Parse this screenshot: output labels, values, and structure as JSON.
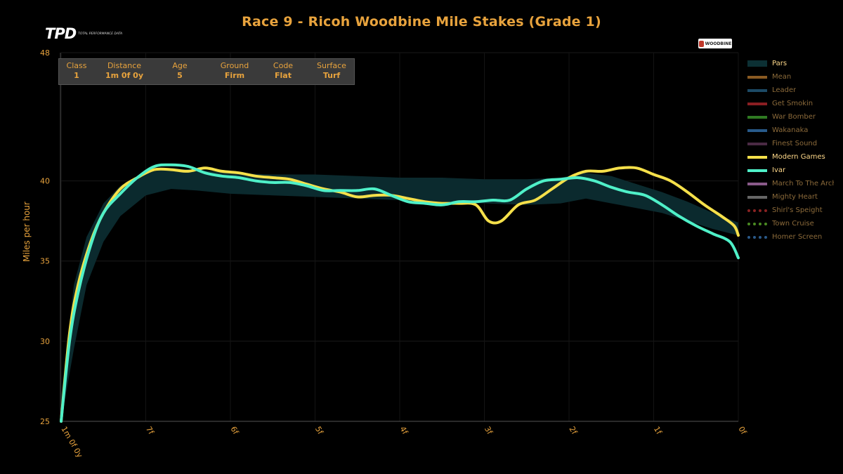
{
  "header": {
    "title": "Race 9 - Ricoh Woodbine Mile Stakes (Grade 1)",
    "logo_main": "TPD",
    "logo_sub": "TOTAL PERFORMANCE DATA",
    "sponsor": "WOODBINE"
  },
  "info_table": [
    {
      "label": "Class",
      "value": "1"
    },
    {
      "label": "Distance",
      "value": "1m 0f 0y"
    },
    {
      "label": "Age",
      "value": "5"
    },
    {
      "label": "Ground",
      "value": "Firm"
    },
    {
      "label": "Code",
      "value": "Flat"
    },
    {
      "label": "Surface",
      "value": "Turf"
    }
  ],
  "chart_data": {
    "type": "line",
    "title": "Race 9 - Ricoh Woodbine Mile Stakes (Grade 1)",
    "ylabel": "Miles per hour",
    "xlabel": "",
    "ylim": [
      25,
      48
    ],
    "yticks": [
      25,
      30,
      35,
      40,
      48
    ],
    "x_ticks": [
      {
        "label": "1m 0f 0y",
        "pos": 0
      },
      {
        "label": "7f",
        "pos": 1
      },
      {
        "label": "6f",
        "pos": 2
      },
      {
        "label": "5f",
        "pos": 3
      },
      {
        "label": "4f",
        "pos": 4
      },
      {
        "label": "3f",
        "pos": 5
      },
      {
        "label": "2f",
        "pos": 6
      },
      {
        "label": "1f",
        "pos": 7
      },
      {
        "label": "0f",
        "pos": 8
      }
    ],
    "pars_band": {
      "name": "Pars",
      "x": [
        0,
        0.15,
        0.3,
        0.5,
        0.7,
        1.0,
        1.3,
        1.6,
        2.0,
        2.5,
        3.0,
        3.5,
        4.0,
        4.5,
        5.0,
        5.5,
        5.9,
        6.2,
        6.5,
        6.8,
        7.1,
        7.4,
        7.7,
        8.0
      ],
      "upper": [
        26.5,
        33.5,
        36.5,
        38.6,
        39.7,
        40.5,
        40.8,
        40.7,
        40.5,
        40.4,
        40.4,
        40.3,
        40.2,
        40.2,
        40.1,
        40.1,
        40.2,
        40.5,
        40.3,
        39.8,
        39.3,
        38.7,
        38.0,
        37.4
      ],
      "lower": [
        25.0,
        29.5,
        33.5,
        36.2,
        37.8,
        39.1,
        39.5,
        39.4,
        39.2,
        39.1,
        39.0,
        38.9,
        38.8,
        38.7,
        38.6,
        38.5,
        38.6,
        38.9,
        38.6,
        38.3,
        38.0,
        37.5,
        37.0,
        36.6
      ]
    },
    "series": [
      {
        "name": "Modern Games",
        "color": "#f5e04a",
        "x": [
          0,
          0.1,
          0.2,
          0.35,
          0.5,
          0.7,
          0.9,
          1.1,
          1.3,
          1.5,
          1.7,
          1.9,
          2.1,
          2.3,
          2.5,
          2.7,
          2.9,
          3.1,
          3.3,
          3.5,
          3.7,
          3.9,
          4.1,
          4.3,
          4.5,
          4.7,
          4.9,
          5.05,
          5.2,
          5.4,
          5.6,
          5.8,
          6.0,
          6.2,
          6.4,
          6.6,
          6.8,
          7.0,
          7.2,
          7.4,
          7.6,
          7.8,
          7.95,
          8.0
        ],
        "y": [
          25.0,
          30.5,
          33.5,
          36.2,
          38.0,
          39.5,
          40.2,
          40.7,
          40.7,
          40.6,
          40.8,
          40.6,
          40.5,
          40.3,
          40.2,
          40.1,
          39.8,
          39.5,
          39.3,
          39.0,
          39.1,
          39.1,
          38.9,
          38.7,
          38.6,
          38.6,
          38.5,
          37.5,
          37.5,
          38.5,
          38.8,
          39.5,
          40.2,
          40.6,
          40.6,
          40.8,
          40.8,
          40.4,
          40.0,
          39.3,
          38.5,
          37.8,
          37.2,
          36.6
        ]
      },
      {
        "name": "Ivar",
        "color": "#4ff0c8",
        "x": [
          0,
          0.1,
          0.2,
          0.35,
          0.5,
          0.7,
          0.9,
          1.1,
          1.3,
          1.5,
          1.7,
          1.9,
          2.1,
          2.3,
          2.5,
          2.7,
          2.9,
          3.1,
          3.3,
          3.5,
          3.7,
          3.9,
          4.1,
          4.3,
          4.5,
          4.7,
          4.9,
          5.1,
          5.3,
          5.5,
          5.7,
          5.9,
          6.1,
          6.3,
          6.5,
          6.7,
          6.9,
          7.1,
          7.3,
          7.5,
          7.7,
          7.9,
          8.0
        ],
        "y": [
          25.0,
          30.0,
          33.0,
          36.0,
          38.0,
          39.2,
          40.2,
          40.9,
          41.0,
          40.9,
          40.5,
          40.3,
          40.2,
          40.0,
          39.9,
          39.9,
          39.7,
          39.4,
          39.4,
          39.4,
          39.5,
          39.1,
          38.7,
          38.6,
          38.5,
          38.7,
          38.7,
          38.8,
          38.8,
          39.5,
          40.0,
          40.1,
          40.2,
          40.0,
          39.6,
          39.3,
          39.1,
          38.5,
          37.8,
          37.2,
          36.7,
          36.2,
          35.2
        ]
      }
    ]
  },
  "legend": [
    {
      "name": "Pars",
      "color": "#0c3034",
      "style": "band",
      "active": true
    },
    {
      "name": "Mean",
      "color": "#8a5a22",
      "style": "solid",
      "active": false
    },
    {
      "name": "Leader",
      "color": "#1c4a66",
      "style": "solid",
      "active": false
    },
    {
      "name": "Get Smokin",
      "color": "#8a1e22",
      "style": "solid",
      "active": false
    },
    {
      "name": "War Bomber",
      "color": "#2f7a22",
      "style": "solid",
      "active": false
    },
    {
      "name": "Wakanaka",
      "color": "#285a8a",
      "style": "solid",
      "active": false
    },
    {
      "name": "Finest Sound",
      "color": "#4a2a44",
      "style": "solid",
      "active": false
    },
    {
      "name": "Modern Games",
      "color": "#f5e04a",
      "style": "solid",
      "active": true
    },
    {
      "name": "Ivar",
      "color": "#4ff0c8",
      "style": "solid",
      "active": true
    },
    {
      "name": "March To The Arch",
      "color": "#8a5a8a",
      "style": "solid",
      "active": false
    },
    {
      "name": "Mighty Heart",
      "color": "#666666",
      "style": "solid",
      "active": false
    },
    {
      "name": "Shirl's Speight",
      "color": "#8a2222",
      "style": "dotted",
      "active": false
    },
    {
      "name": "Town Cruise",
      "color": "#4a8a22",
      "style": "dotted",
      "active": false
    },
    {
      "name": "Homer Screen",
      "color": "#2a5a8a",
      "style": "dotted",
      "active": false
    }
  ]
}
